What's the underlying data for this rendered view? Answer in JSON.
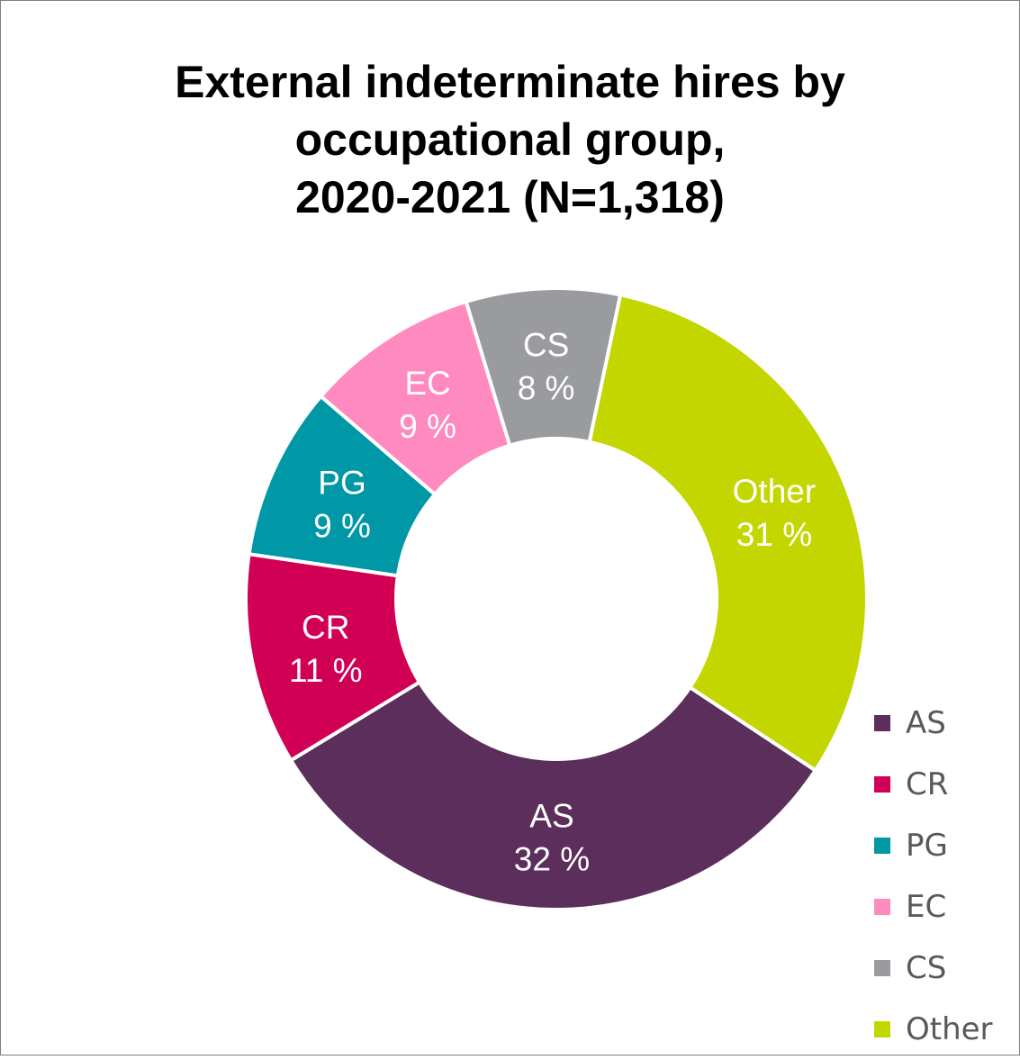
{
  "chart_data": {
    "type": "pie",
    "variant": "donut",
    "title_lines": [
      "External indeterminate hires by",
      "occupational group,",
      "2020-2021 (N=1,318)"
    ],
    "slices": [
      {
        "label": "AS",
        "value": 32,
        "value_label": "32 %",
        "color": "#5b2e5c"
      },
      {
        "label": "CR",
        "value": 11,
        "value_label": "11 %",
        "color": "#d20055"
      },
      {
        "label": "PG",
        "value": 9,
        "value_label": "9 %",
        "color": "#0097a7"
      },
      {
        "label": "EC",
        "value": 9,
        "value_label": "9 %",
        "color": "#ff8ac0"
      },
      {
        "label": "CS",
        "value": 8,
        "value_label": "8 %",
        "color": "#9a9b9f"
      },
      {
        "label": "Other",
        "value": 31,
        "value_label": "31 %",
        "color": "#c4d600"
      }
    ],
    "legend": {
      "position": "bottom-right",
      "entries": [
        "AS",
        "CR",
        "PG",
        "EC",
        "CS",
        "Other"
      ]
    }
  }
}
